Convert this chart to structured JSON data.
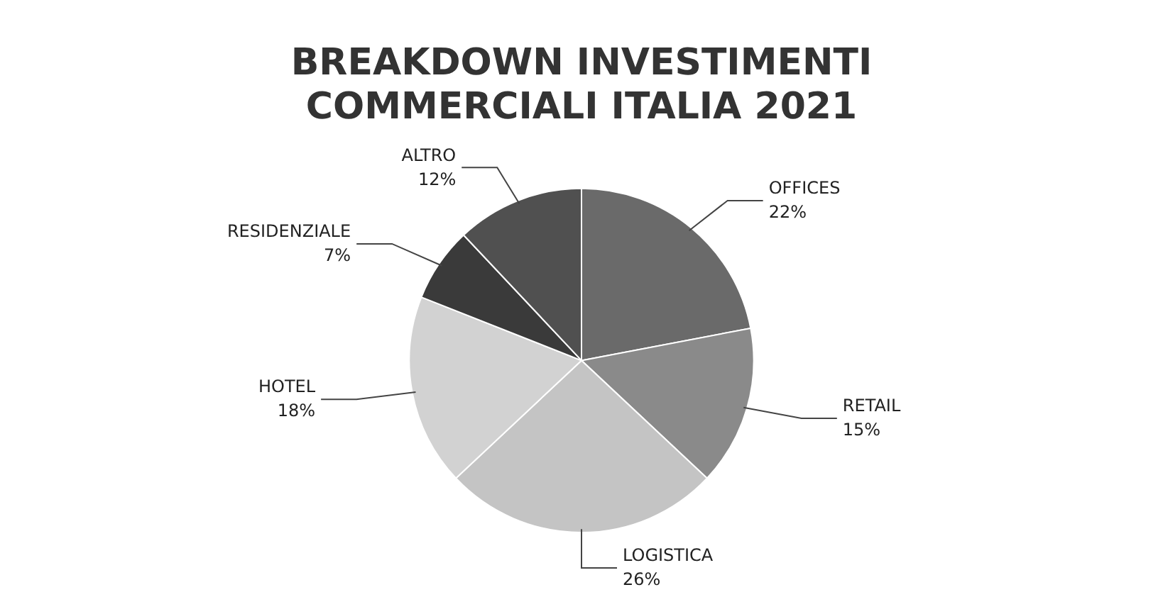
{
  "chart_data": {
    "type": "pie",
    "title": "BREAKDOWN INVESTIMENTI\nCOMMERCIALI ITALIA 2021",
    "categories": [
      "OFFICES",
      "RETAIL",
      "LOGISTICA",
      "HOTEL",
      "RESIDENZIALE",
      "ALTRO"
    ],
    "values": [
      22,
      15,
      26,
      18,
      7,
      12
    ],
    "colors": [
      "#6a6a6a",
      "#8a8a8a",
      "#c4c4c4",
      "#d2d2d2",
      "#3a3a3a",
      "#505050"
    ],
    "value_labels": [
      "22%",
      "15%",
      "26%",
      "18%",
      "7%",
      "12%"
    ],
    "legend": false
  }
}
